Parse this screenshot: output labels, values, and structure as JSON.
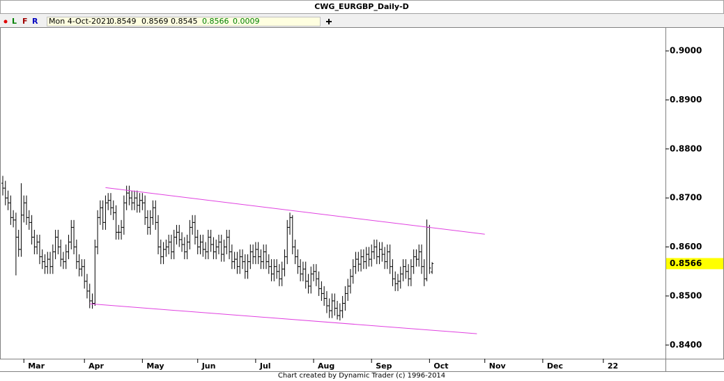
{
  "chart_data": {
    "type": "ohlc",
    "title": "CWG_EURGBP_Daily-D",
    "categories": [
      null,
      null,
      null,
      null,
      null,
      null,
      null,
      null,
      "Mar",
      null,
      null,
      null,
      null,
      null,
      null,
      null,
      null,
      null,
      null,
      null,
      null,
      null,
      null,
      null,
      null,
      null,
      null,
      null,
      null,
      null,
      null,
      "Apr",
      null,
      null,
      null,
      null,
      null,
      null,
      null,
      null,
      null,
      null,
      null,
      null,
      null,
      null,
      null,
      null,
      null,
      null,
      null,
      null,
      null,
      "May",
      null,
      null,
      null,
      null,
      null,
      null,
      null,
      null,
      null,
      null,
      null,
      null,
      null,
      null,
      null,
      null,
      null,
      null,
      null,
      null,
      "Jun",
      null,
      null,
      null,
      null,
      null,
      null,
      null,
      null,
      null,
      null,
      null,
      null,
      null,
      null,
      null,
      null,
      null,
      null,
      null,
      null,
      null,
      "Jul",
      null,
      null,
      null,
      null,
      null,
      null,
      null,
      null,
      null,
      null,
      null,
      null,
      null,
      null,
      null,
      null,
      null,
      null,
      null,
      null,
      null,
      "Aug",
      null,
      null,
      null,
      null,
      null,
      null,
      null,
      null,
      null,
      null,
      null,
      null,
      null,
      null,
      null,
      null,
      null,
      null,
      null,
      null,
      null,
      "Sep",
      null,
      null,
      null,
      null,
      null,
      null,
      null,
      null,
      null,
      null,
      null,
      null,
      null,
      null,
      null,
      null,
      null,
      null,
      null,
      null,
      null,
      "Oct",
      null,
      null,
      null,
      null,
      null,
      null,
      null,
      null,
      null,
      null,
      null,
      null,
      null,
      null,
      null,
      null,
      null,
      null,
      null,
      null,
      "Nov",
      null,
      null,
      null,
      null,
      null,
      null,
      null,
      null,
      null,
      null,
      null,
      null,
      null,
      null,
      null,
      null,
      null,
      null,
      null,
      null,
      null,
      "Dec",
      null,
      null,
      null,
      null,
      null,
      null,
      null,
      null,
      null,
      null,
      null,
      null,
      null,
      null,
      null,
      null,
      null,
      null,
      null,
      null,
      null,
      null,
      "22",
      null,
      null,
      null,
      null,
      null,
      null,
      null,
      null,
      null,
      null,
      null,
      null,
      null,
      null,
      null,
      null,
      null,
      null,
      null,
      null,
      null
    ],
    "open": [
      0.873,
      0.872,
      0.87,
      0.869,
      0.866,
      0.8655,
      0.862,
      0.8595,
      0.8665,
      0.869,
      0.866,
      0.865,
      0.862,
      0.86,
      0.861,
      0.858,
      0.857,
      0.856,
      0.8575,
      0.856,
      0.859,
      0.862,
      0.86,
      0.8575,
      0.857,
      0.859,
      0.861,
      0.864,
      0.86,
      0.857,
      0.8555,
      0.856,
      0.853,
      0.851,
      0.849,
      0.8485,
      0.86,
      0.866,
      0.868,
      0.865,
      0.869,
      0.8695,
      0.868,
      0.867,
      0.863,
      0.863,
      0.864,
      0.869,
      0.871,
      0.87,
      0.869,
      0.87,
      0.8685,
      0.8695,
      0.869,
      0.866,
      0.864,
      0.866,
      0.868,
      0.865,
      0.86,
      0.858,
      0.8595,
      0.86,
      0.861,
      0.859,
      0.862,
      0.863,
      0.8615,
      0.8605,
      0.859,
      0.861,
      0.864,
      0.865,
      0.862,
      0.86,
      0.861,
      0.8595,
      0.859,
      0.862,
      0.8605,
      0.859,
      0.86,
      0.861,
      0.8585,
      0.86,
      0.862,
      0.859,
      0.857,
      0.8575,
      0.856,
      0.858,
      0.857,
      0.855,
      0.857,
      0.859,
      0.858,
      0.8595,
      0.858,
      0.857,
      0.859,
      0.857,
      0.856,
      0.8545,
      0.856,
      0.855,
      0.8535,
      0.8555,
      0.858,
      0.864,
      0.866,
      0.86,
      0.858,
      0.856,
      0.8545,
      0.8555,
      0.853,
      0.852,
      0.8545,
      0.855,
      0.8535,
      0.8515,
      0.8505,
      0.8495,
      0.848,
      0.847,
      0.849,
      0.8475,
      0.846,
      0.847,
      0.8485,
      0.8505,
      0.852,
      0.854,
      0.856,
      0.8575,
      0.8565,
      0.858,
      0.857,
      0.8585,
      0.8575,
      0.859,
      0.86,
      0.858,
      0.8595,
      0.8585,
      0.857,
      0.859,
      0.856,
      0.8535,
      0.8525,
      0.853,
      0.8545,
      0.856,
      0.855,
      0.8535,
      0.856,
      0.858,
      0.8575,
      0.859,
      0.856,
      0.8535,
      0.864,
      0.8549,
      null,
      null,
      null,
      null,
      null,
      null,
      null,
      null,
      null,
      null,
      null,
      null,
      null,
      null,
      null,
      null,
      null,
      null,
      null,
      null,
      null,
      null,
      null,
      null,
      null,
      null,
      null,
      null,
      null,
      null,
      null,
      null,
      null,
      null,
      null,
      null,
      null,
      null,
      null,
      null,
      null,
      null,
      null,
      null,
      null,
      null,
      null,
      null,
      null,
      null,
      null,
      null,
      null,
      null,
      null,
      null,
      null,
      null,
      null,
      null,
      null,
      null,
      null,
      null,
      null,
      null,
      null,
      null,
      null,
      null,
      null,
      null,
      null,
      null,
      null,
      null,
      null,
      null,
      null,
      null,
      null,
      null,
      null,
      null,
      null,
      null
    ],
    "high": [
      0.8745,
      0.8735,
      0.8715,
      0.8705,
      0.8675,
      0.867,
      0.8635,
      0.873,
      0.8705,
      0.8705,
      0.8675,
      0.8665,
      0.8635,
      0.8625,
      0.8625,
      0.8595,
      0.8585,
      0.859,
      0.859,
      0.8605,
      0.8635,
      0.8635,
      0.8615,
      0.859,
      0.8605,
      0.8625,
      0.8655,
      0.8655,
      0.8615,
      0.8585,
      0.8575,
      0.8575,
      0.8545,
      0.8525,
      0.8505,
      0.8615,
      0.8675,
      0.8695,
      0.8695,
      0.8705,
      0.871,
      0.871,
      0.8695,
      0.8685,
      0.8645,
      0.8655,
      0.8705,
      0.8725,
      0.8725,
      0.8715,
      0.8715,
      0.8715,
      0.871,
      0.871,
      0.8705,
      0.8675,
      0.8675,
      0.8695,
      0.8695,
      0.8665,
      0.8615,
      0.861,
      0.8615,
      0.8625,
      0.8625,
      0.8635,
      0.8645,
      0.8645,
      0.863,
      0.862,
      0.8625,
      0.8655,
      0.8665,
      0.8665,
      0.8635,
      0.8625,
      0.8625,
      0.861,
      0.8635,
      0.8635,
      0.862,
      0.8615,
      0.8625,
      0.8625,
      0.8615,
      0.8635,
      0.8635,
      0.8605,
      0.859,
      0.859,
      0.8595,
      0.8595,
      0.8585,
      0.8585,
      0.8605,
      0.8605,
      0.861,
      0.861,
      0.8595,
      0.8605,
      0.8605,
      0.8585,
      0.8575,
      0.8575,
      0.8575,
      0.8565,
      0.857,
      0.8595,
      0.8655,
      0.867,
      0.8665,
      0.8615,
      0.8595,
      0.8575,
      0.857,
      0.857,
      0.8545,
      0.856,
      0.8565,
      0.8565,
      0.855,
      0.853,
      0.852,
      0.851,
      0.8495,
      0.8505,
      0.8505,
      0.849,
      0.8485,
      0.85,
      0.852,
      0.8535,
      0.8555,
      0.8575,
      0.859,
      0.859,
      0.8595,
      0.8595,
      0.86,
      0.86,
      0.8605,
      0.8615,
      0.8615,
      0.861,
      0.861,
      0.86,
      0.8605,
      0.8605,
      0.8575,
      0.855,
      0.8545,
      0.856,
      0.8575,
      0.8575,
      0.8565,
      0.8575,
      0.8595,
      0.8595,
      0.8605,
      0.8605,
      0.8575,
      0.8656,
      0.8645,
      0.8569,
      null,
      null,
      null,
      null,
      null,
      null,
      null,
      null,
      null,
      null,
      null,
      null,
      null,
      null,
      null,
      null,
      null,
      null,
      null,
      null,
      null,
      null,
      null,
      null,
      null,
      null,
      null,
      null,
      null,
      null,
      null,
      null,
      null,
      null,
      null,
      null,
      null,
      null,
      null,
      null,
      null,
      null,
      null,
      null,
      null,
      null,
      null,
      null,
      null,
      null,
      null,
      null,
      null,
      null,
      null,
      null,
      null,
      null,
      null,
      null,
      null,
      null,
      null,
      null,
      null,
      null,
      null,
      null,
      null,
      null,
      null,
      null,
      null,
      null,
      null,
      null,
      null,
      null,
      null,
      null,
      null,
      null,
      null,
      null,
      null,
      null
    ],
    "low": [
      0.8705,
      0.8685,
      0.8675,
      0.8645,
      0.864,
      0.8542,
      0.858,
      0.858,
      0.865,
      0.8645,
      0.8635,
      0.8605,
      0.8585,
      0.8585,
      0.8565,
      0.8555,
      0.8545,
      0.8545,
      0.8545,
      0.8545,
      0.8575,
      0.8585,
      0.856,
      0.8555,
      0.8555,
      0.8575,
      0.8595,
      0.8585,
      0.8555,
      0.854,
      0.854,
      0.8515,
      0.8495,
      0.8475,
      0.8474,
      0.848,
      0.8585,
      0.8645,
      0.8635,
      0.8635,
      0.8675,
      0.8665,
      0.8655,
      0.8615,
      0.8615,
      0.8615,
      0.8625,
      0.8675,
      0.8685,
      0.8675,
      0.8675,
      0.867,
      0.867,
      0.8675,
      0.8645,
      0.8625,
      0.8625,
      0.8645,
      0.8635,
      0.8585,
      0.8565,
      0.8565,
      0.858,
      0.8585,
      0.8575,
      0.8575,
      0.8605,
      0.86,
      0.859,
      0.8575,
      0.8575,
      0.8595,
      0.8625,
      0.8605,
      0.8585,
      0.8585,
      0.858,
      0.8575,
      0.8575,
      0.859,
      0.8575,
      0.8575,
      0.8585,
      0.857,
      0.857,
      0.8585,
      0.8575,
      0.8555,
      0.8555,
      0.8545,
      0.8545,
      0.8555,
      0.8535,
      0.8535,
      0.8555,
      0.8565,
      0.8565,
      0.8565,
      0.8555,
      0.8555,
      0.8555,
      0.8545,
      0.853,
      0.853,
      0.8535,
      0.852,
      0.852,
      0.854,
      0.8565,
      0.8625,
      0.8585,
      0.8565,
      0.8545,
      0.853,
      0.853,
      0.8515,
      0.8505,
      0.8505,
      0.853,
      0.852,
      0.85,
      0.849,
      0.848,
      0.8465,
      0.8455,
      0.8455,
      0.846,
      0.8452,
      0.845,
      0.8455,
      0.847,
      0.849,
      0.8505,
      0.8525,
      0.8545,
      0.855,
      0.855,
      0.8555,
      0.8555,
      0.856,
      0.856,
      0.8575,
      0.8565,
      0.8565,
      0.857,
      0.8555,
      0.8555,
      0.8545,
      0.852,
      0.851,
      0.851,
      0.8515,
      0.853,
      0.8535,
      0.852,
      0.852,
      0.8545,
      0.856,
      0.856,
      0.8545,
      0.852,
      0.853,
      0.8545,
      0.8545,
      null,
      null,
      null,
      null,
      null,
      null,
      null,
      null,
      null,
      null,
      null,
      null,
      null,
      null,
      null,
      null,
      null,
      null,
      null,
      null,
      null,
      null,
      null,
      null,
      null,
      null,
      null,
      null,
      null,
      null,
      null,
      null,
      null,
      null,
      null,
      null,
      null,
      null,
      null,
      null,
      null,
      null,
      null,
      null,
      null,
      null,
      null,
      null,
      null,
      null,
      null,
      null,
      null,
      null,
      null,
      null,
      null,
      null,
      null,
      null,
      null,
      null,
      null,
      null,
      null,
      null,
      null,
      null,
      null,
      null,
      null,
      null,
      null,
      null,
      null,
      null,
      null,
      null,
      null,
      null,
      null,
      null,
      null,
      null,
      null,
      null
    ],
    "close": [
      0.872,
      0.87,
      0.869,
      0.866,
      0.8655,
      0.862,
      0.8595,
      0.8665,
      0.869,
      0.866,
      0.865,
      0.862,
      0.86,
      0.861,
      0.858,
      0.857,
      0.856,
      0.8575,
      0.856,
      0.859,
      0.862,
      0.86,
      0.8575,
      0.857,
      0.859,
      0.861,
      0.864,
      0.86,
      0.857,
      0.8555,
      0.856,
      0.853,
      0.851,
      0.849,
      0.8485,
      0.86,
      0.866,
      0.868,
      0.865,
      0.869,
      0.8695,
      0.868,
      0.867,
      0.863,
      0.863,
      0.864,
      0.869,
      0.871,
      0.87,
      0.869,
      0.87,
      0.8685,
      0.8695,
      0.869,
      0.866,
      0.864,
      0.866,
      0.868,
      0.865,
      0.86,
      0.858,
      0.8595,
      0.86,
      0.861,
      0.859,
      0.862,
      0.863,
      0.8615,
      0.8605,
      0.859,
      0.861,
      0.864,
      0.865,
      0.862,
      0.86,
      0.861,
      0.8595,
      0.859,
      0.862,
      0.8605,
      0.859,
      0.86,
      0.861,
      0.8585,
      0.86,
      0.862,
      0.859,
      0.857,
      0.8575,
      0.856,
      0.858,
      0.857,
      0.855,
      0.857,
      0.859,
      0.858,
      0.8595,
      0.858,
      0.857,
      0.859,
      0.857,
      0.856,
      0.8545,
      0.856,
      0.855,
      0.8535,
      0.8555,
      0.858,
      0.864,
      0.866,
      0.86,
      0.858,
      0.856,
      0.8545,
      0.8555,
      0.853,
      0.852,
      0.8545,
      0.855,
      0.8535,
      0.8515,
      0.8505,
      0.8495,
      0.848,
      0.847,
      0.849,
      0.8475,
      0.846,
      0.847,
      0.8485,
      0.8505,
      0.852,
      0.854,
      0.856,
      0.8575,
      0.8565,
      0.858,
      0.857,
      0.8585,
      0.8575,
      0.859,
      0.86,
      0.858,
      0.8595,
      0.8585,
      0.857,
      0.859,
      0.856,
      0.8535,
      0.8525,
      0.853,
      0.8545,
      0.856,
      0.855,
      0.8535,
      0.856,
      0.858,
      0.8575,
      0.859,
      0.856,
      0.8535,
      0.864,
      0.8557,
      0.8566,
      null,
      null,
      null,
      null,
      null,
      null,
      null,
      null,
      null,
      null,
      null,
      null,
      null,
      null,
      null,
      null,
      null,
      null,
      null,
      null,
      null,
      null,
      null,
      null,
      null,
      null,
      null,
      null,
      null,
      null,
      null,
      null,
      null,
      null,
      null,
      null,
      null,
      null,
      null,
      null,
      null,
      null,
      null,
      null,
      null,
      null,
      null,
      null,
      null,
      null,
      null,
      null,
      null,
      null,
      null,
      null,
      null,
      null,
      null,
      null,
      null,
      null,
      null,
      null,
      null,
      null,
      null,
      null,
      null,
      null,
      null,
      null,
      null,
      null,
      null,
      null,
      null,
      null,
      null,
      null,
      null,
      null,
      null,
      null,
      null,
      null
    ],
    "color": "#000000",
    "ylim": [
      0.8372,
      0.9047
    ],
    "yticks": [
      {
        "value": 0.84,
        "label": "0.8400"
      },
      {
        "value": 0.85,
        "label": "0.8500"
      },
      {
        "value": 0.86,
        "label": "0.8600"
      },
      {
        "value": 0.87,
        "label": "0.8700"
      },
      {
        "value": 0.88,
        "label": "0.8800"
      },
      {
        "value": 0.89,
        "label": "0.8900"
      },
      {
        "value": 0.9,
        "label": "0.9000"
      }
    ],
    "trendlines": [
      [
        [
          39,
          0.8721
        ],
        [
          183,
          0.8626
        ]
      ],
      [
        [
          33,
          0.8484
        ],
        [
          180,
          0.8423
        ]
      ]
    ],
    "trendline_color": "#e040e0",
    "last_price_color": "#ffff00"
  },
  "toolbar": [
    "L",
    "F",
    "R"
  ],
  "info": {
    "date": "Mon 4-Oct-2021",
    "change": 0.0009
  },
  "footer": "Chart created by Dynamic Trader  (c) 1996-2014"
}
